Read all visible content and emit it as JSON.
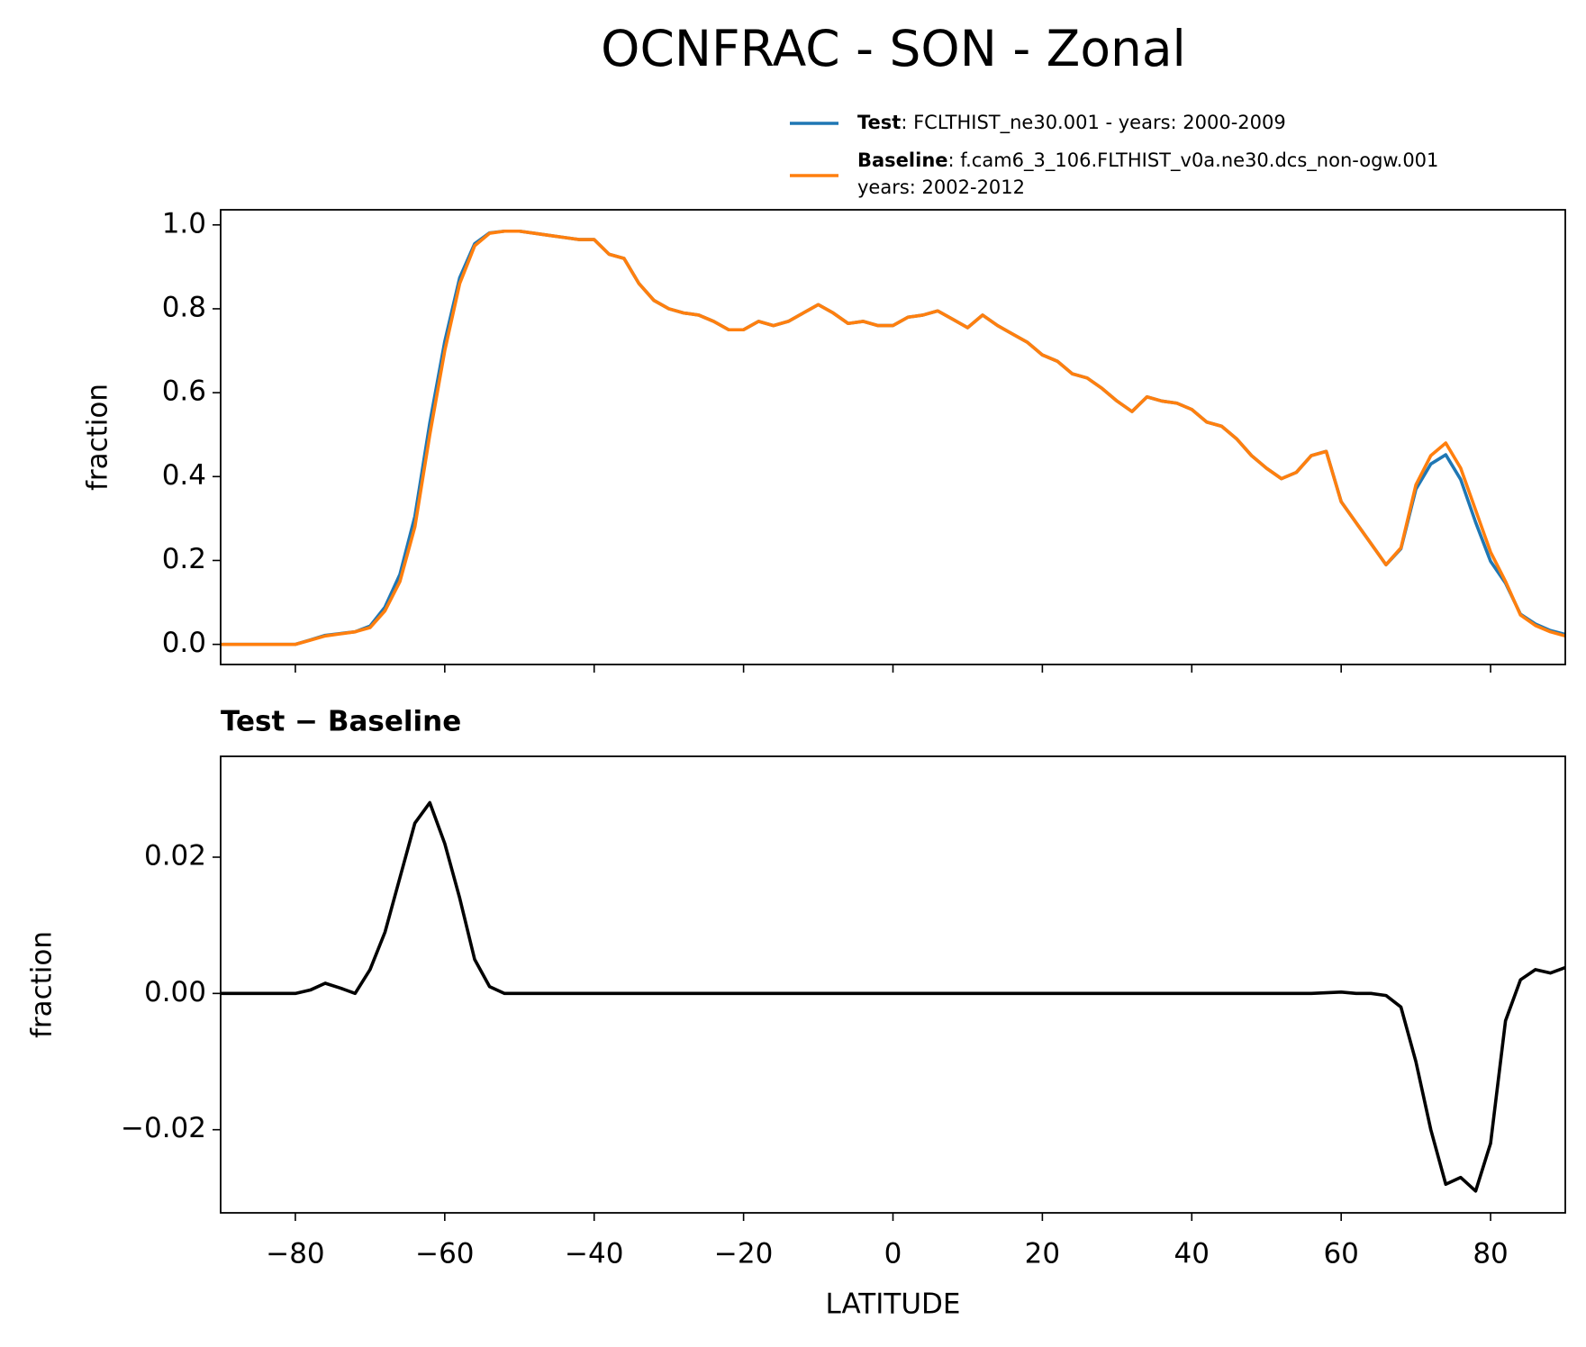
{
  "title": "OCNFRAC - SON - Zonal",
  "chart_data": [
    {
      "type": "line",
      "ylabel": "fraction",
      "x": [
        -90,
        -88,
        -86,
        -84,
        -82,
        -80,
        -78,
        -76,
        -74,
        -72,
        -70,
        -68,
        -66,
        -64,
        -62,
        -60,
        -58,
        -56,
        -54,
        -52,
        -50,
        -48,
        -46,
        -44,
        -42,
        -40,
        -38,
        -36,
        -34,
        -32,
        -30,
        -28,
        -26,
        -24,
        -22,
        -20,
        -18,
        -16,
        -14,
        -12,
        -10,
        -8,
        -6,
        -4,
        -2,
        0,
        2,
        4,
        6,
        8,
        10,
        12,
        14,
        16,
        18,
        20,
        22,
        24,
        26,
        28,
        30,
        32,
        34,
        36,
        38,
        40,
        42,
        44,
        46,
        48,
        50,
        52,
        54,
        56,
        58,
        60,
        62,
        64,
        66,
        68,
        70,
        72,
        74,
        76,
        78,
        80,
        82,
        84,
        86,
        88,
        90
      ],
      "series": [
        {
          "name": "Test",
          "legend_text": [
            ": FCLTHIST_ne30.001 - years: 2000-2009"
          ],
          "color": "#1f77b4",
          "values": [
            0,
            0,
            0,
            0,
            0,
            0,
            0.0105,
            0.0215,
            0.0258,
            0.03,
            0.0435,
            0.089,
            0.167,
            0.305,
            0.528,
            0.722,
            0.874,
            0.955,
            0.981,
            0.985,
            0.985,
            0.98,
            0.975,
            0.97,
            0.965,
            0.965,
            0.93,
            0.92,
            0.86,
            0.82,
            0.8,
            0.79,
            0.785,
            0.77,
            0.75,
            0.75,
            0.77,
            0.76,
            0.77,
            0.79,
            0.81,
            0.79,
            0.765,
            0.77,
            0.76,
            0.76,
            0.78,
            0.785,
            0.795,
            0.775,
            0.755,
            0.785,
            0.76,
            0.74,
            0.72,
            0.69,
            0.675,
            0.645,
            0.635,
            0.61,
            0.58,
            0.555,
            0.59,
            0.58,
            0.575,
            0.56,
            0.53,
            0.52,
            0.49,
            0.45,
            0.42,
            0.395,
            0.41,
            0.45,
            0.4601,
            0.3402,
            0.29,
            0.24,
            0.1897,
            0.228,
            0.37,
            0.43,
            0.452,
            0.393,
            0.291,
            0.198,
            0.146,
            0.072,
            0.0485,
            0.033,
            0.0238
          ]
        },
        {
          "name": "Baseline",
          "legend_text": [
            ": f.cam6_3_106.FLTHIST_v0a.ne30.dcs_non-ogw.001",
            "years: 2002-2012"
          ],
          "color": "#ff7f0e",
          "values": [
            0,
            0,
            0,
            0,
            0,
            0,
            0.01,
            0.02,
            0.025,
            0.03,
            0.04,
            0.08,
            0.15,
            0.28,
            0.5,
            0.7,
            0.86,
            0.95,
            0.98,
            0.985,
            0.985,
            0.98,
            0.975,
            0.97,
            0.965,
            0.965,
            0.93,
            0.92,
            0.86,
            0.82,
            0.8,
            0.79,
            0.785,
            0.77,
            0.75,
            0.75,
            0.77,
            0.76,
            0.77,
            0.79,
            0.81,
            0.79,
            0.765,
            0.77,
            0.76,
            0.76,
            0.78,
            0.785,
            0.795,
            0.775,
            0.755,
            0.785,
            0.76,
            0.74,
            0.72,
            0.69,
            0.675,
            0.645,
            0.635,
            0.61,
            0.58,
            0.555,
            0.59,
            0.58,
            0.575,
            0.56,
            0.53,
            0.52,
            0.49,
            0.45,
            0.42,
            0.395,
            0.41,
            0.45,
            0.46,
            0.34,
            0.29,
            0.24,
            0.19,
            0.23,
            0.38,
            0.45,
            0.48,
            0.42,
            0.32,
            0.22,
            0.15,
            0.07,
            0.045,
            0.03,
            0.02
          ]
        }
      ],
      "xlim": [
        -90,
        90
      ],
      "xticks": [
        -80,
        -60,
        -40,
        -20,
        0,
        20,
        40,
        60,
        80
      ],
      "ylim": [
        -0.048,
        1.036
      ],
      "yticks": [
        {
          "value": 0,
          "label": "0.0"
        },
        0.2,
        0.4,
        0.6,
        0.8,
        {
          "value": 1,
          "label": "1.0"
        }
      ],
      "legend": "upper right"
    },
    {
      "type": "line",
      "title": "Test − Baseline",
      "xlabel": "LATITUDE",
      "ylabel": "fraction",
      "x": [
        -90,
        -88,
        -86,
        -84,
        -82,
        -80,
        -78,
        -76,
        -74,
        -72,
        -70,
        -68,
        -66,
        -64,
        -62,
        -60,
        -58,
        -56,
        -54,
        -52,
        -50,
        -48,
        -46,
        -44,
        -42,
        -40,
        -38,
        -36,
        -34,
        -32,
        -30,
        -28,
        -26,
        -24,
        -22,
        -20,
        -18,
        -16,
        -14,
        -12,
        -10,
        -8,
        -6,
        -4,
        -2,
        0,
        2,
        4,
        6,
        8,
        10,
        12,
        14,
        16,
        18,
        20,
        22,
        24,
        26,
        28,
        30,
        32,
        34,
        36,
        38,
        40,
        42,
        44,
        46,
        48,
        50,
        52,
        54,
        56,
        58,
        60,
        62,
        64,
        66,
        68,
        70,
        72,
        74,
        76,
        78,
        80,
        82,
        84,
        86,
        88,
        90
      ],
      "series": [
        {
          "color": "#000000",
          "values": [
            0,
            0,
            0,
            0,
            0,
            0,
            0.0005,
            0.0015,
            0.0008,
            0,
            0.0035,
            0.009,
            0.017,
            0.025,
            0.028,
            0.022,
            0.014,
            0.005,
            0.001,
            0,
            0,
            0,
            0,
            0,
            0,
            0,
            0,
            0,
            0,
            0,
            0,
            0,
            0,
            0,
            0,
            0,
            0,
            0,
            0,
            0,
            0,
            0,
            0,
            0,
            0,
            0,
            0,
            0,
            0,
            0,
            0,
            0,
            0,
            0,
            0,
            0,
            0,
            0,
            0,
            0,
            0,
            0,
            0,
            0,
            0,
            0,
            0,
            0,
            0,
            0,
            0,
            0,
            0,
            0,
            0.0001,
            0.0002,
            0,
            0,
            -0.0003,
            -0.002,
            -0.01,
            -0.02,
            -0.028,
            -0.027,
            -0.029,
            -0.022,
            -0.004,
            0.002,
            0.0035,
            0.003,
            0.0038
          ]
        }
      ],
      "xlim": [
        -90,
        90
      ],
      "xticks": [
        {
          "value": -80,
          "label": "−80"
        },
        {
          "value": -60,
          "label": "−60"
        },
        {
          "value": -40,
          "label": "−40"
        },
        {
          "value": -20,
          "label": "−20"
        },
        0,
        20,
        40,
        60,
        80
      ],
      "ylim": [
        -0.0322,
        0.0348
      ],
      "yticks": [
        {
          "value": -0.02,
          "label": "−0.02"
        },
        {
          "value": 0,
          "label": "0.00"
        },
        {
          "value": 0.02,
          "label": "0.02"
        }
      ]
    }
  ]
}
